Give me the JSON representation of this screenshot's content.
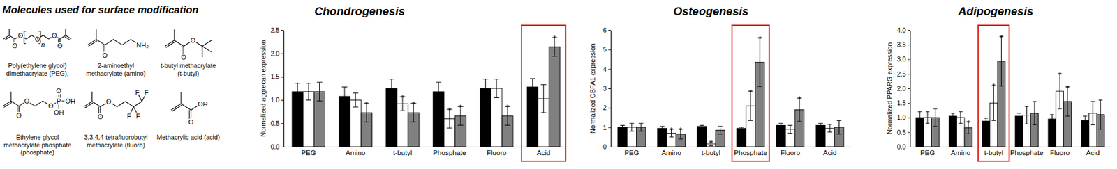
{
  "diagram": {
    "title": "Molecules used for surface modification",
    "molecules": [
      {
        "name": [
          "Poly(ethylene glycol)",
          "dimethacrylate (PEG),"
        ],
        "atoms": [
          "O",
          "O",
          "O",
          "O",
          "O",
          "n"
        ]
      },
      {
        "name": [
          "2-aminoethyl",
          "methacrylate (amino)"
        ],
        "atoms": [
          "O",
          "NH₂"
        ]
      },
      {
        "name": [
          "t-butyl methacrylate",
          "(t-butyl)"
        ],
        "atoms": [
          "O",
          "O"
        ]
      },
      {
        "name": [
          "Ethylene glycol",
          "methacrylate phosphate",
          "(phosphate)"
        ],
        "atoms": [
          "O",
          "O",
          "O",
          "P",
          "O",
          "OH",
          "OH"
        ]
      },
      {
        "name": [
          "3,3,4,4-tetrafluorobutyl",
          "methacrylate (fluoro)"
        ],
        "atoms": [
          "O",
          "O",
          "F",
          "F",
          "F",
          "F"
        ]
      },
      {
        "name": [
          "Methacrylic acid (acid)"
        ],
        "atoms": [
          "O",
          "OH"
        ]
      }
    ]
  },
  "chart_data": [
    {
      "type": "bar",
      "title": "Chondrogenesis",
      "ylabel": "Normalized aggrecan expression",
      "categories": [
        "PEG",
        "Amino",
        "t-butyl",
        "Phosphate",
        "Fluoro",
        "Acid"
      ],
      "series": [
        {
          "color": "#000000",
          "values": [
            1.18,
            1.08,
            1.25,
            1.18,
            1.25,
            1.28
          ],
          "errors": [
            0.18,
            0.2,
            0.2,
            0.2,
            0.2,
            0.18
          ]
        },
        {
          "color": "#ffffff",
          "values": [
            1.18,
            1.0,
            0.92,
            0.6,
            1.25,
            1.03
          ],
          "errors": [
            0.18,
            0.15,
            0.15,
            0.2,
            0.2,
            0.3
          ],
          "significance": [
            null,
            null,
            "*",
            "*",
            null,
            null
          ]
        },
        {
          "color": "#808080",
          "values": [
            1.18,
            0.73,
            0.73,
            0.66,
            0.66,
            2.14
          ],
          "errors": [
            0.2,
            0.2,
            0.2,
            0.2,
            0.2,
            0.2
          ],
          "significance": [
            null,
            "*",
            "*",
            "*",
            "*",
            "*"
          ]
        }
      ],
      "ylim": [
        0,
        2.5
      ],
      "yticks": [
        {
          "value": 0,
          "label": "0.0"
        },
        0.5,
        {
          "value": 1,
          "label": "1.0"
        },
        1.5,
        {
          "value": 2,
          "label": "2.0"
        },
        2.5
      ],
      "highlight_category": "Acid"
    },
    {
      "type": "bar",
      "title": "Osteogenesis",
      "ylabel": "Normalized CBFA1 expression",
      "categories": [
        "PEG",
        "Amino",
        "t-butyl",
        "Phosphate",
        "Fluoro",
        "Acid"
      ],
      "series": [
        {
          "color": "#000000",
          "values": [
            1.0,
            0.95,
            1.05,
            0.95,
            1.1,
            1.1
          ],
          "errors": [
            0.1,
            0.1,
            0.05,
            0.05,
            0.1,
            0.1
          ]
        },
        {
          "color": "#ffffff",
          "values": [
            1.0,
            0.7,
            0.15,
            2.1,
            0.9,
            0.95
          ],
          "errors": [
            0.2,
            0.2,
            0.1,
            0.75,
            0.2,
            0.2
          ],
          "significance": [
            null,
            "*",
            "*",
            "*",
            null,
            null
          ]
        },
        {
          "color": "#808080",
          "values": [
            1.0,
            0.65,
            0.85,
            4.35,
            1.9,
            1.0
          ],
          "errors": [
            0.2,
            0.25,
            0.2,
            1.25,
            0.6,
            0.35
          ],
          "significance": [
            null,
            "*",
            null,
            "*",
            "*",
            null
          ]
        }
      ],
      "ylim": [
        0,
        6
      ],
      "yticks": [
        0,
        1,
        2,
        3,
        4,
        5,
        6
      ],
      "highlight_category": "Phosphate"
    },
    {
      "type": "bar",
      "title": "Adipogenesis",
      "ylabel": "Normalized PPARG expression",
      "categories": [
        "PEG",
        "Amino",
        "t-butyl",
        "Phosphate",
        "Fluoro",
        "Acid"
      ],
      "series": [
        {
          "color": "#000000",
          "values": [
            1.0,
            1.05,
            0.88,
            1.05,
            0.95,
            0.9
          ],
          "errors": [
            0.2,
            0.1,
            0.1,
            0.1,
            0.15,
            0.15
          ]
        },
        {
          "color": "#ffffff",
          "values": [
            1.0,
            1.0,
            1.5,
            1.08,
            1.9,
            1.15
          ],
          "errors": [
            0.2,
            0.2,
            0.6,
            0.3,
            0.6,
            0.4
          ],
          "significance": [
            null,
            null,
            "*",
            null,
            "*",
            null
          ]
        },
        {
          "color": "#808080",
          "values": [
            1.0,
            0.65,
            2.93,
            1.15,
            1.55,
            1.1
          ],
          "errors": [
            0.3,
            0.2,
            0.85,
            0.4,
            0.5,
            0.5
          ],
          "significance": [
            null,
            "*",
            "*",
            null,
            "*",
            null
          ]
        }
      ],
      "ylim": [
        0,
        4
      ],
      "yticks": [
        {
          "value": 0,
          "label": "0.0"
        },
        0.5,
        {
          "value": 1,
          "label": "1.0"
        },
        1.5,
        {
          "value": 2,
          "label": "2.0"
        },
        2.5,
        {
          "value": 3,
          "label": "3.0"
        },
        3.5,
        {
          "value": 4,
          "label": "4.0"
        }
      ],
      "highlight_category": "t-butyl"
    }
  ]
}
